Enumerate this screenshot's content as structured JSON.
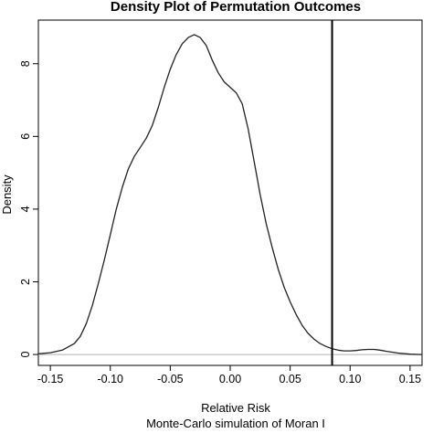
{
  "chart_data": {
    "type": "line",
    "title": "Density Plot of Permutation Outcomes",
    "xlabel": "Relative Risk",
    "subtitle": "Monte-Carlo simulation of Moran I",
    "ylabel": "Density",
    "xlim": [
      -0.16,
      0.16
    ],
    "ylim": [
      -0.3,
      9.2
    ],
    "x_ticks": [
      -0.15,
      -0.1,
      -0.05,
      0.0,
      0.05,
      0.1,
      0.15
    ],
    "x_tick_labels": [
      "-0.15",
      "-0.10",
      "-0.05",
      "0.00",
      "0.05",
      "0.10",
      "0.15"
    ],
    "y_ticks": [
      0,
      2,
      4,
      6,
      8
    ],
    "y_tick_labels": [
      "0",
      "2",
      "4",
      "6",
      "8"
    ],
    "grid": false,
    "baseline": 0,
    "reference_line_x": 0.085,
    "series": [
      {
        "x": [
          -0.16,
          -0.15,
          -0.14,
          -0.13,
          -0.125,
          -0.12,
          -0.115,
          -0.11,
          -0.105,
          -0.1,
          -0.095,
          -0.09,
          -0.085,
          -0.08,
          -0.075,
          -0.07,
          -0.065,
          -0.06,
          -0.055,
          -0.05,
          -0.045,
          -0.04,
          -0.035,
          -0.03,
          -0.025,
          -0.02,
          -0.015,
          -0.01,
          -0.005,
          0.0,
          0.005,
          0.01,
          0.015,
          0.02,
          0.025,
          0.03,
          0.035,
          0.04,
          0.045,
          0.05,
          0.055,
          0.06,
          0.065,
          0.07,
          0.075,
          0.08,
          0.085,
          0.09,
          0.095,
          0.1,
          0.105,
          0.11,
          0.115,
          0.12,
          0.125,
          0.13,
          0.14,
          0.15,
          0.16
        ],
        "y": [
          0.02,
          0.05,
          0.12,
          0.3,
          0.5,
          0.85,
          1.35,
          1.95,
          2.6,
          3.3,
          4.0,
          4.6,
          5.1,
          5.45,
          5.7,
          5.95,
          6.3,
          6.8,
          7.35,
          7.85,
          8.25,
          8.55,
          8.72,
          8.8,
          8.72,
          8.5,
          8.1,
          7.75,
          7.5,
          7.35,
          7.2,
          6.9,
          6.2,
          5.3,
          4.4,
          3.6,
          2.95,
          2.35,
          1.85,
          1.45,
          1.1,
          0.8,
          0.58,
          0.42,
          0.3,
          0.22,
          0.16,
          0.12,
          0.1,
          0.1,
          0.11,
          0.13,
          0.14,
          0.14,
          0.12,
          0.09,
          0.04,
          0.01,
          0.0
        ]
      }
    ]
  }
}
